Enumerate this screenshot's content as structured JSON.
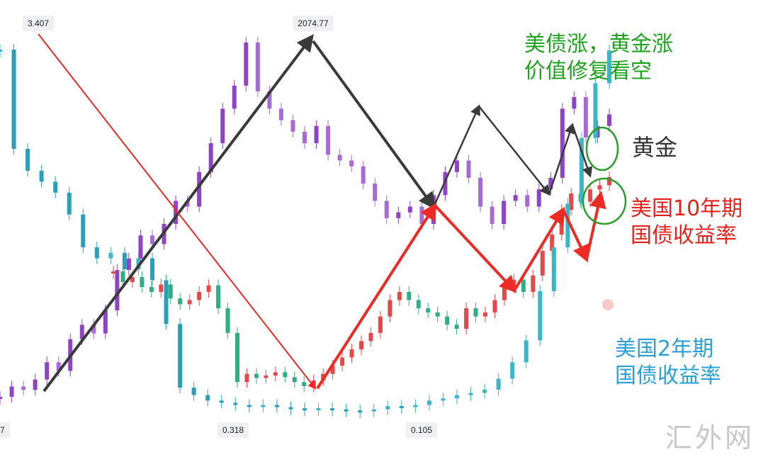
{
  "chart_data": {
    "type": "candlestick-overlay",
    "title": "",
    "xlabel": "",
    "ylabel": "",
    "grid": false,
    "labels": {
      "bond_gold_note": [
        "美债涨，黄金涨",
        "价值修复看空"
      ],
      "gold_label": "黄金",
      "us10y_label": [
        "美国10年期",
        "国债收益率"
      ],
      "us2y_label": [
        "美国2年期",
        "国债收益率"
      ]
    },
    "price_tags": {
      "top_left": "3.407",
      "top_mid": "2074.77",
      "bottom_left": "7",
      "bottom_mid": "0.318",
      "bottom_right": "0.105"
    },
    "series": [
      {
        "name": "黄金",
        "color": "#8e44c4",
        "values": [
          1460,
          1478,
          1472,
          1490,
          1520,
          1505,
          1560,
          1585,
          1570,
          1610,
          1680,
          1700,
          1740,
          1725,
          1760,
          1800,
          1790,
          1850,
          1900,
          1960,
          2000,
          2074.77,
          1990,
          1960,
          1940,
          1920,
          1900,
          1930,
          1880,
          1870,
          1860,
          1830,
          1800,
          1770,
          1780,
          1790,
          1760,
          1810,
          1850,
          1870,
          1840,
          1790,
          1760,
          1800,
          1810,
          1790,
          1820,
          1840,
          1960,
          1980,
          1910,
          1930,
          1950
        ]
      },
      {
        "name": "美国10年期国债收益率",
        "color": "#e03a3a",
        "values": [
          1.95,
          1.82,
          1.88,
          1.76,
          1.7,
          1.79,
          1.62,
          1.55,
          1.6,
          1.7,
          1.78,
          1.5,
          1.2,
          0.6,
          0.7,
          0.65,
          0.68,
          0.72,
          0.66,
          0.6,
          0.55,
          0.62,
          0.7,
          0.8,
          0.9,
          1.0,
          1.1,
          1.2,
          1.4,
          1.6,
          1.7,
          1.6,
          1.5,
          1.45,
          1.4,
          1.3,
          1.25,
          1.5,
          1.4,
          1.45,
          1.6,
          1.75,
          1.85,
          1.7,
          1.9,
          2.2,
          2.4,
          2.7,
          2.9,
          2.8,
          2.95,
          3.0,
          3.1
        ]
      },
      {
        "name": "美国2年期国债收益率",
        "color": "#3aa6d8",
        "values": [
          3.407,
          2.5,
          2.3,
          2.2,
          2.1,
          1.9,
          1.6,
          1.5,
          1.55,
          1.4,
          1.5,
          1.3,
          0.9,
          0.318,
          0.25,
          0.2,
          0.18,
          0.16,
          0.15,
          0.16,
          0.14,
          0.13,
          0.12,
          0.13,
          0.12,
          0.11,
          0.105,
          0.12,
          0.15,
          0.14,
          0.16,
          0.2,
          0.22,
          0.25,
          0.27,
          0.3,
          0.4,
          0.55,
          0.75,
          1.2,
          1.6,
          2.0,
          2.6,
          3.1,
          3.4
        ]
      }
    ],
    "colors": {
      "gold_text": "#333333",
      "us10y_text": "#e5231b",
      "us2y_text": "#2a9fd8",
      "note_text": "#1ea31e",
      "trend_up_gold": "#3a3a3a",
      "trend_10y": "#ee2a24",
      "circle": "#2a9d2a"
    }
  },
  "watermark": "汇外网"
}
